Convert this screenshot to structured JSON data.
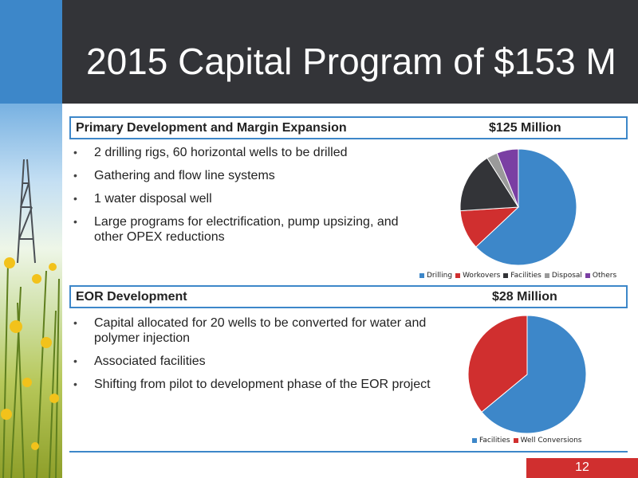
{
  "slide": {
    "title": "2015 Capital Program of $153 M",
    "page_number": "12"
  },
  "sections": [
    {
      "title": "Primary Development and Margin Expansion",
      "amount": "$125 Million",
      "bullets": [
        "2 drilling rigs, 60 horizontal wells to be drilled",
        "Gathering and flow line systems",
        "1 water disposal well",
        "Large programs for electrification, pump upsizing, and other OPEX reductions"
      ]
    },
    {
      "title": "EOR Development",
      "amount": "$28 Million",
      "bullets": [
        "Capital allocated for 20 wells to be converted for water and polymer injection",
        "Associated facilities",
        "Shifting from pilot to development phase of the EOR project"
      ]
    }
  ],
  "chart_data": [
    {
      "type": "pie",
      "categories": [
        "Drilling",
        "Workovers",
        "Facilities",
        "Disposal",
        "Others"
      ],
      "values": [
        63,
        11,
        17,
        3,
        6
      ],
      "colors": [
        "#3d87c9",
        "#d02f2f",
        "#333438",
        "#9a9a9a",
        "#7a3fa3"
      ],
      "legend": "bottom"
    },
    {
      "type": "pie",
      "categories": [
        "Facilities",
        "Well Conversions"
      ],
      "values": [
        64,
        36
      ],
      "colors": [
        "#3d87c9",
        "#d02f2f"
      ],
      "legend": "bottom"
    }
  ]
}
